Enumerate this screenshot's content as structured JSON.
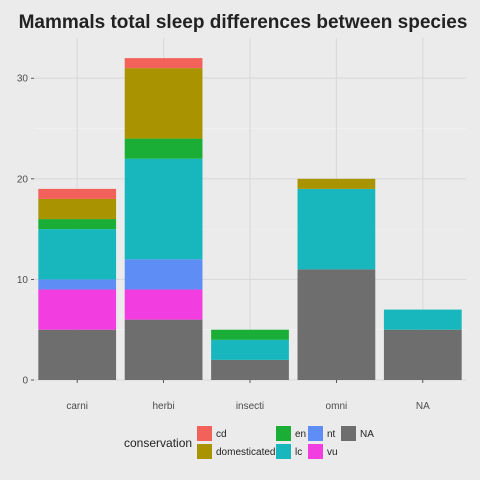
{
  "chart_data": {
    "type": "bar",
    "stacked": true,
    "title": "Mammals total sleep differences between species",
    "xlabel": "",
    "ylabel": "",
    "categories": [
      "carni",
      "herbi",
      "insecti",
      "omni",
      "NA"
    ],
    "ylim": [
      0,
      34
    ],
    "yticks": [
      0,
      10,
      20,
      30
    ],
    "grid": true,
    "legend_position": "bottom",
    "legend_title": "conservation",
    "series": [
      {
        "name": "NA",
        "color": "#6e6e6e",
        "values": [
          5,
          6,
          2,
          11,
          5
        ]
      },
      {
        "name": "vu",
        "color": "#f23ee0",
        "values": [
          4,
          3,
          0,
          0,
          0
        ]
      },
      {
        "name": "nt",
        "color": "#5e8ef5",
        "values": [
          1,
          3,
          0,
          0,
          0
        ]
      },
      {
        "name": "lc",
        "color": "#17b7bd",
        "values": [
          5,
          10,
          2,
          8,
          2
        ]
      },
      {
        "name": "en",
        "color": "#1aae36",
        "values": [
          1,
          2,
          1,
          0,
          0
        ]
      },
      {
        "name": "domesticated",
        "color": "#a99400",
        "values": [
          2,
          7,
          0,
          1,
          0
        ]
      },
      {
        "name": "cd",
        "color": "#f2615a",
        "values": [
          1,
          1,
          0,
          0,
          0
        ]
      }
    ],
    "legend_order": [
      "cd",
      "domesticated",
      "en",
      "lc",
      "nt",
      "vu",
      "NA"
    ]
  }
}
